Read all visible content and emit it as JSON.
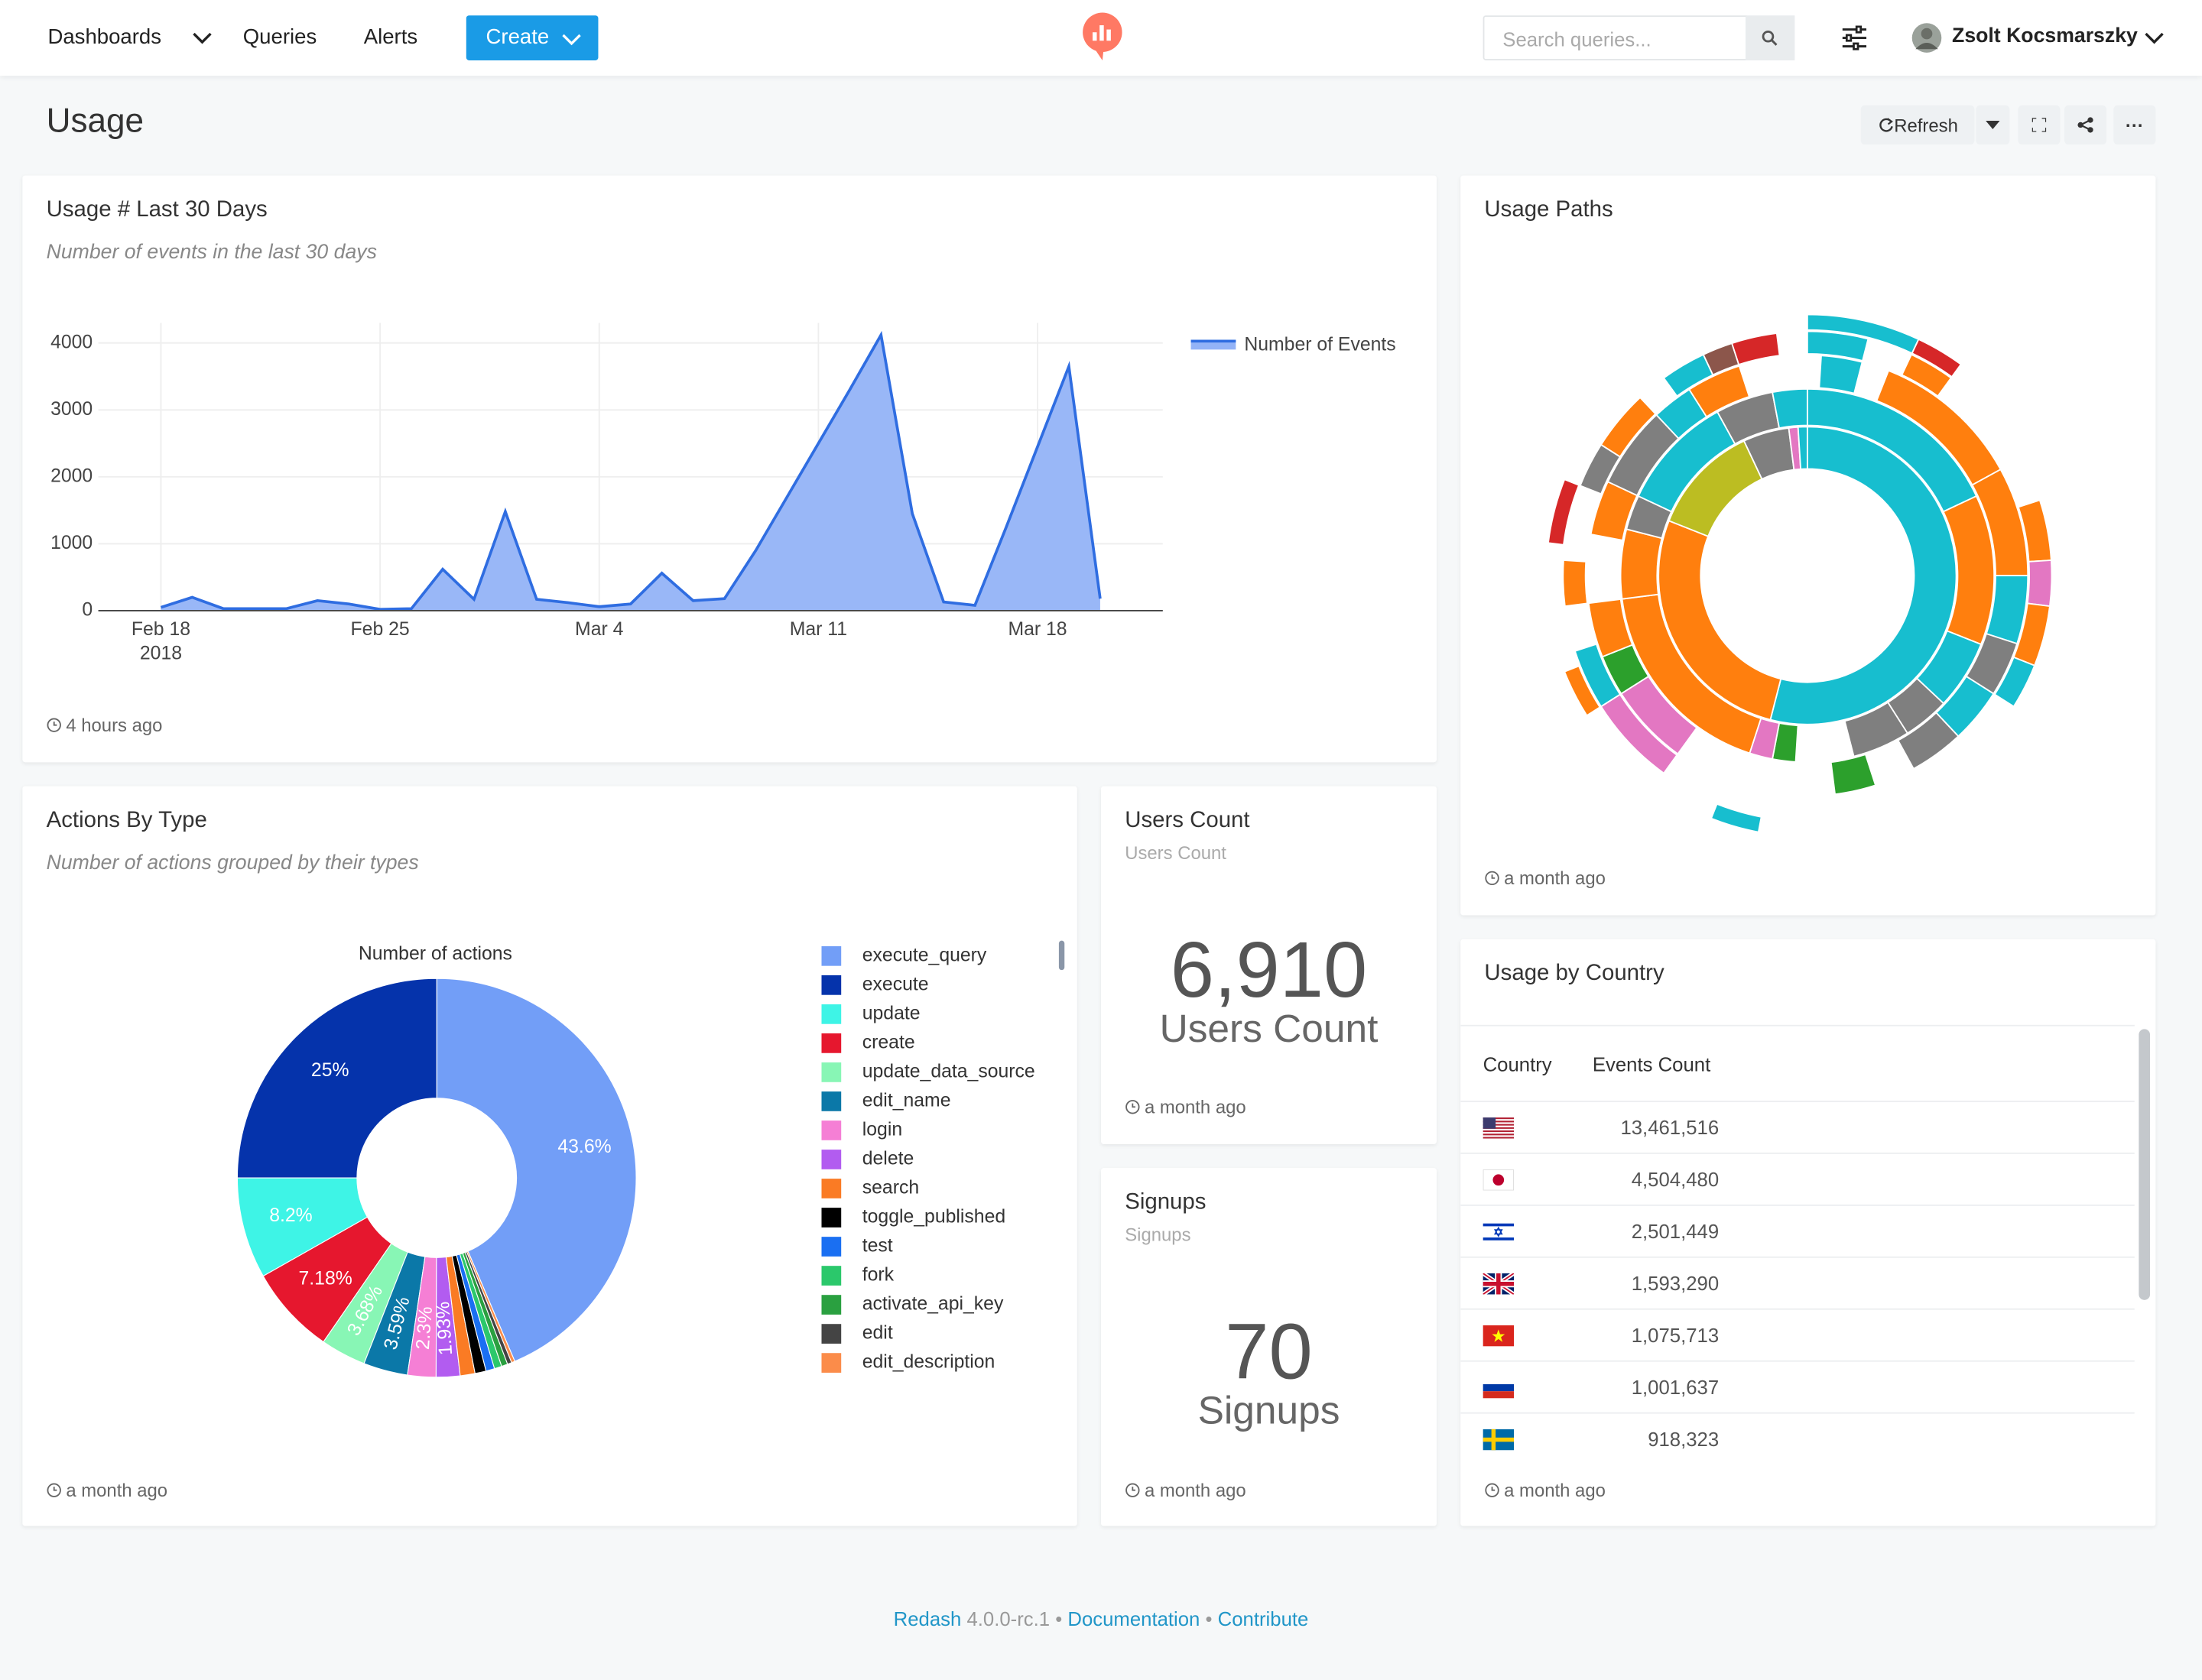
{
  "nav": {
    "items": [
      "Dashboards",
      "Queries",
      "Alerts"
    ],
    "create": "Create",
    "search_placeholder": "Search queries...",
    "user": "Zsolt Kocsmarszky"
  },
  "dashboard": {
    "title": "Usage",
    "refresh": "Refresh",
    "more": "···"
  },
  "usage_chart": {
    "title": "Usage # Last 30 Days",
    "subtitle": "Number of events in the last 30 days",
    "updated": "4 hours ago",
    "chart_data": {
      "type": "line",
      "x": [
        "2018-02-18",
        "2018-02-19",
        "2018-02-20",
        "2018-02-21",
        "2018-02-22",
        "2018-02-23",
        "2018-02-24",
        "2018-02-25",
        "2018-02-26",
        "2018-02-27",
        "2018-02-28",
        "2018-03-01",
        "2018-03-02",
        "2018-03-03",
        "2018-03-04",
        "2018-03-05",
        "2018-03-06",
        "2018-03-07",
        "2018-03-08",
        "2018-03-09",
        "2018-03-10",
        "2018-03-11",
        "2018-03-12",
        "2018-03-13",
        "2018-03-14",
        "2018-03-15",
        "2018-03-16",
        "2018-03-17",
        "2018-03-18",
        "2018-03-19",
        "2018-03-20"
      ],
      "series": [
        {
          "name": "Number of Events",
          "color": "#2f6de1",
          "fill": "#93b3f7",
          "values": [
            50,
            200,
            30,
            30,
            30,
            150,
            100,
            20,
            30,
            620,
            170,
            1480,
            170,
            120,
            60,
            100,
            560,
            150,
            180,
            900,
            1700,
            2500,
            3300,
            4120,
            1450,
            130,
            80,
            1250,
            2450,
            3650,
            180
          ]
        }
      ],
      "xlim": [
        "2018-02-16",
        "2018-03-22"
      ],
      "xticks": [
        {
          "value": "2018-02-18",
          "label": "Feb 18"
        },
        {
          "value": "2018-02-25",
          "label": "Feb 25"
        },
        {
          "value": "2018-03-04",
          "label": "Mar 4"
        },
        {
          "value": "2018-03-11",
          "label": "Mar 11"
        },
        {
          "value": "2018-03-18",
          "label": "Mar 18"
        }
      ],
      "xtick_year": "2018",
      "ylim": [
        0,
        4300
      ],
      "yticks": [
        0,
        1000,
        2000,
        3000,
        4000
      ],
      "grid": true
    }
  },
  "usage_paths": {
    "title": "Usage Paths",
    "updated": "a month ago",
    "chart_data": {
      "type": "sunburst",
      "rings": [
        {
          "values": [
            54,
            27,
            12,
            5,
            1,
            1
          ],
          "colors": [
            "#17becf",
            "#ff7f0e",
            "#bcbd22",
            "#7f7f7f",
            "#e377c2",
            "#17becf"
          ]
        },
        {
          "values": [
            18,
            13,
            6,
            4,
            5,
            5,
            2,
            2,
            18,
            6,
            3,
            10,
            5,
            3
          ],
          "colors": [
            "#17becf",
            "#ff7f0e",
            "#17becf",
            "#7f7f7f",
            "#7f7f7f",
            "none",
            "#2ca02c",
            "#e377c2",
            "#ff7f0e",
            "#ff7f0e",
            "#7f7f7f",
            "#17becf",
            "#7f7f7f",
            "#17becf"
          ]
        },
        {
          "values": [
            1,
            3,
            2,
            11,
            8,
            5,
            4,
            4,
            4,
            3,
            3,
            12,
            6,
            3,
            4,
            5,
            4,
            6,
            3,
            4,
            5
          ],
          "colors": [
            "none",
            "#17becf",
            "none",
            "#ff7f0e",
            "#ff7f0e",
            "#17becf",
            "#7f7f7f",
            "#17becf",
            "#7f7f7f",
            "none",
            "#2ca02c",
            "none",
            "#e377c2",
            "#2ca02c",
            "#ff7f0e",
            "none",
            "#ff7f0e",
            "#7f7f7f",
            "#17becf",
            "#ff7f0e",
            "none"
          ]
        },
        {
          "values": [
            4,
            3,
            3,
            10,
            4,
            3,
            4,
            3,
            26,
            6,
            4,
            3,
            3,
            5,
            3,
            4,
            2,
            3,
            2,
            3,
            2
          ],
          "colors": [
            "#17becf",
            "none",
            "#ff7f0e",
            "none",
            "#ff7f0e",
            "#e377c2",
            "#ff7f0e",
            "#17becf",
            "none",
            "#e377c2",
            "#17becf",
            "none",
            "#ff7f0e",
            "none",
            "#7f7f7f",
            "#ff7f0e",
            "none",
            "#17becf",
            "#8c564b",
            "#d62728",
            "none"
          ]
        },
        {
          "values": [
            7,
            3,
            3,
            40,
            3,
            10,
            3,
            8,
            4,
            19
          ],
          "colors": [
            "#17becf",
            "#d62728",
            "none",
            "none",
            "#17becf",
            "none",
            "#ff7f0e",
            "none",
            "#d62728",
            "none"
          ]
        }
      ]
    }
  },
  "actions_by_type": {
    "title": "Actions By Type",
    "subtitle": "Number of actions grouped by their types",
    "updated": "a month ago",
    "chart_data": {
      "type": "pie",
      "title": "Number of actions",
      "hole": 0.4,
      "categories": [
        "execute_query",
        "execute",
        "update",
        "create",
        "update_data_source",
        "edit_name",
        "login",
        "delete",
        "search",
        "toggle_published",
        "test",
        "fork",
        "activate_api_key",
        "edit",
        "edit_description"
      ],
      "values": [
        43.6,
        25,
        8.2,
        7.18,
        3.68,
        3.59,
        2.3,
        1.93,
        1.2,
        0.9,
        0.7,
        0.6,
        0.5,
        0.35,
        0.27
      ],
      "value_labels": [
        "43.6%",
        "25%",
        "8.2%",
        "7.18%",
        "3.68%",
        "3.59%",
        "2.3%",
        "1.93%",
        null,
        null,
        null,
        null,
        null,
        null,
        null
      ],
      "colors": [
        "#729ef7",
        "#0533ab",
        "#3ef4e6",
        "#e6172e",
        "#88f6b5",
        "#0b78a8",
        "#f57fd5",
        "#b25cf0",
        "#fa7b24",
        "#000000",
        "#1a6ff2",
        "#2bc86b",
        "#2aa040",
        "#444444",
        "#fb8c4a"
      ]
    }
  },
  "users_count": {
    "title": "Users Count",
    "subtitle": "Users Count",
    "value": "6,910",
    "label": "Users Count",
    "updated": "a month ago"
  },
  "signups": {
    "title": "Signups",
    "subtitle": "Signups",
    "value": 70,
    "label": "Signups",
    "updated": "a month ago"
  },
  "usage_by_country": {
    "title": "Usage by Country",
    "columns": [
      "Country",
      "Events Count"
    ],
    "rows": [
      "13,461,516",
      "4,504,480",
      "2,501,449",
      "1,593,290",
      "1,075,713",
      "1,001,637",
      "918,323"
    ],
    "updated": "a month ago"
  },
  "footer": {
    "brand": "Redash",
    "version": "4.0.0-rc.1",
    "separator": "•",
    "links": [
      "Documentation",
      "Contribute"
    ]
  }
}
